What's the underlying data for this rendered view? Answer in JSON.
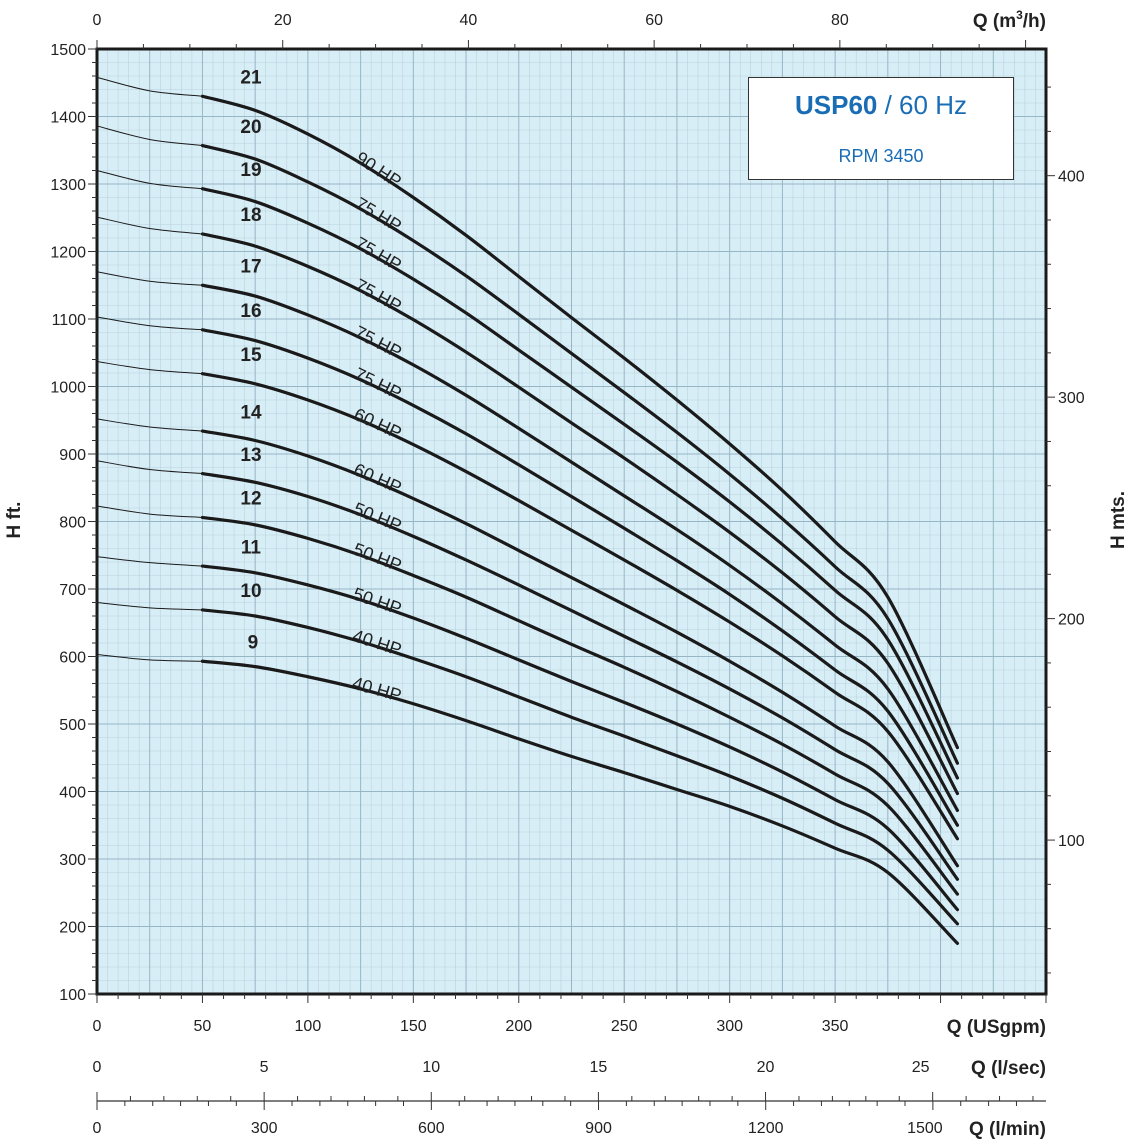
{
  "chart_data": {
    "type": "line",
    "title": "USP60",
    "title_suffix": " / 60 Hz",
    "subtitle": "RPM 3450",
    "grid": true,
    "axes": {
      "x_bottom": {
        "label": "Q (USgpm)",
        "range": [
          0,
          450
        ],
        "ticks": [
          0,
          50,
          100,
          150,
          200,
          250,
          300,
          350
        ]
      },
      "x_top": {
        "label": "Q (m³/h)",
        "label_main": "Q (m",
        "label_sup": "3",
        "label_end": "/h)",
        "range": [
          0,
          102.2
        ],
        "ticks": [
          0,
          20,
          40,
          60,
          80
        ]
      },
      "x_lsec": {
        "label": "Q (l/sec)",
        "range": [
          0,
          28.39
        ],
        "ticks": [
          0,
          5,
          10,
          15,
          20,
          25
        ]
      },
      "x_lmin": {
        "label": "Q (l/min)",
        "range": [
          0,
          1703
        ],
        "ticks": [
          0,
          300,
          600,
          900,
          1200,
          1500
        ]
      },
      "y_left": {
        "label": "H ft.",
        "range": [
          100,
          1500
        ],
        "ticks": [
          100,
          200,
          300,
          400,
          500,
          600,
          700,
          800,
          900,
          1000,
          1100,
          1200,
          1300,
          1400,
          1500
        ]
      },
      "y_right": {
        "label": "H mts.",
        "range": [
          30.5,
          457.2
        ],
        "ticks": [
          100,
          200,
          300,
          400
        ]
      }
    },
    "series": [
      {
        "name": "9",
        "power": "40 HP",
        "points": [
          [
            0,
            603
          ],
          [
            25,
            595
          ],
          [
            50,
            593
          ],
          [
            75,
            585
          ],
          [
            100,
            570
          ],
          [
            125,
            552
          ],
          [
            150,
            530
          ],
          [
            175,
            505
          ],
          [
            200,
            478
          ],
          [
            225,
            452
          ],
          [
            250,
            428
          ],
          [
            275,
            403
          ],
          [
            300,
            378
          ],
          [
            325,
            349
          ],
          [
            350,
            316
          ],
          [
            375,
            280
          ],
          [
            408,
            175
          ]
        ]
      },
      {
        "name": "10",
        "power": "40 HP",
        "points": [
          [
            0,
            680
          ],
          [
            25,
            672
          ],
          [
            50,
            669
          ],
          [
            75,
            660
          ],
          [
            100,
            643
          ],
          [
            125,
            622
          ],
          [
            150,
            597
          ],
          [
            175,
            570
          ],
          [
            200,
            540
          ],
          [
            225,
            510
          ],
          [
            250,
            482
          ],
          [
            275,
            453
          ],
          [
            300,
            423
          ],
          [
            325,
            390
          ],
          [
            350,
            353
          ],
          [
            375,
            313
          ],
          [
            408,
            204
          ]
        ]
      },
      {
        "name": "11",
        "power": "50 HP",
        "points": [
          [
            0,
            748
          ],
          [
            25,
            739
          ],
          [
            50,
            734
          ],
          [
            75,
            724
          ],
          [
            100,
            706
          ],
          [
            125,
            684
          ],
          [
            150,
            657
          ],
          [
            175,
            627
          ],
          [
            200,
            595
          ],
          [
            225,
            563
          ],
          [
            250,
            532
          ],
          [
            275,
            500
          ],
          [
            300,
            466
          ],
          [
            325,
            429
          ],
          [
            350,
            388
          ],
          [
            375,
            345
          ],
          [
            408,
            225
          ]
        ]
      },
      {
        "name": "12",
        "power": "50 HP",
        "points": [
          [
            0,
            823
          ],
          [
            25,
            811
          ],
          [
            50,
            806
          ],
          [
            75,
            795
          ],
          [
            100,
            775
          ],
          [
            125,
            750
          ],
          [
            150,
            720
          ],
          [
            175,
            688
          ],
          [
            200,
            653
          ],
          [
            225,
            618
          ],
          [
            250,
            584
          ],
          [
            275,
            548
          ],
          [
            300,
            510
          ],
          [
            325,
            470
          ],
          [
            350,
            426
          ],
          [
            375,
            379
          ],
          [
            408,
            248
          ]
        ]
      },
      {
        "name": "13",
        "power": "50 HP",
        "points": [
          [
            0,
            890
          ],
          [
            25,
            877
          ],
          [
            50,
            871
          ],
          [
            75,
            858
          ],
          [
            100,
            837
          ],
          [
            125,
            810
          ],
          [
            150,
            778
          ],
          [
            175,
            743
          ],
          [
            200,
            706
          ],
          [
            225,
            668
          ],
          [
            250,
            630
          ],
          [
            275,
            592
          ],
          [
            300,
            552
          ],
          [
            325,
            509
          ],
          [
            350,
            462
          ],
          [
            375,
            412
          ],
          [
            408,
            270
          ]
        ]
      },
      {
        "name": "14",
        "power": "60 HP",
        "points": [
          [
            0,
            952
          ],
          [
            25,
            940
          ],
          [
            50,
            934
          ],
          [
            75,
            920
          ],
          [
            100,
            897
          ],
          [
            125,
            868
          ],
          [
            150,
            834
          ],
          [
            175,
            797
          ],
          [
            200,
            757
          ],
          [
            225,
            717
          ],
          [
            250,
            677
          ],
          [
            275,
            636
          ],
          [
            300,
            593
          ],
          [
            325,
            547
          ],
          [
            350,
            497
          ],
          [
            375,
            444
          ],
          [
            408,
            290
          ]
        ]
      },
      {
        "name": "15",
        "power": "60 HP",
        "points": [
          [
            0,
            1037
          ],
          [
            25,
            1025
          ],
          [
            50,
            1019
          ],
          [
            75,
            1004
          ],
          [
            100,
            980
          ],
          [
            125,
            950
          ],
          [
            150,
            914
          ],
          [
            175,
            874
          ],
          [
            200,
            831
          ],
          [
            225,
            787
          ],
          [
            250,
            743
          ],
          [
            275,
            698
          ],
          [
            300,
            651
          ],
          [
            325,
            601
          ],
          [
            350,
            547
          ],
          [
            375,
            489
          ],
          [
            408,
            330
          ]
        ]
      },
      {
        "name": "16",
        "power": "75 HP",
        "points": [
          [
            0,
            1103
          ],
          [
            25,
            1090
          ],
          [
            50,
            1084
          ],
          [
            75,
            1068
          ],
          [
            100,
            1042
          ],
          [
            125,
            1010
          ],
          [
            150,
            972
          ],
          [
            175,
            930
          ],
          [
            200,
            884
          ],
          [
            225,
            837
          ],
          [
            250,
            790
          ],
          [
            275,
            742
          ],
          [
            300,
            692
          ],
          [
            325,
            638
          ],
          [
            350,
            580
          ],
          [
            375,
            519
          ],
          [
            408,
            350
          ]
        ]
      },
      {
        "name": "17",
        "power": "75 HP",
        "points": [
          [
            0,
            1170
          ],
          [
            25,
            1156
          ],
          [
            50,
            1150
          ],
          [
            75,
            1134
          ],
          [
            100,
            1106
          ],
          [
            125,
            1072
          ],
          [
            150,
            1032
          ],
          [
            175,
            987
          ],
          [
            200,
            938
          ],
          [
            225,
            888
          ],
          [
            250,
            838
          ],
          [
            275,
            788
          ],
          [
            300,
            735
          ],
          [
            325,
            678
          ],
          [
            350,
            617
          ],
          [
            375,
            552
          ],
          [
            408,
            372
          ]
        ]
      },
      {
        "name": "18",
        "power": "75 HP",
        "points": [
          [
            0,
            1251
          ],
          [
            25,
            1234
          ],
          [
            50,
            1226
          ],
          [
            75,
            1208
          ],
          [
            100,
            1178
          ],
          [
            125,
            1142
          ],
          [
            150,
            1099
          ],
          [
            175,
            1051
          ],
          [
            200,
            999
          ],
          [
            225,
            946
          ],
          [
            250,
            894
          ],
          [
            275,
            840
          ],
          [
            300,
            784
          ],
          [
            325,
            724
          ],
          [
            350,
            659
          ],
          [
            375,
            590
          ],
          [
            408,
            397
          ]
        ]
      },
      {
        "name": "19",
        "power": "75 HP",
        "points": [
          [
            0,
            1320
          ],
          [
            25,
            1301
          ],
          [
            50,
            1293
          ],
          [
            75,
            1274
          ],
          [
            100,
            1242
          ],
          [
            125,
            1204
          ],
          [
            150,
            1159
          ],
          [
            175,
            1109
          ],
          [
            200,
            1054
          ],
          [
            225,
            999
          ],
          [
            250,
            944
          ],
          [
            275,
            888
          ],
          [
            300,
            829
          ],
          [
            325,
            766
          ],
          [
            350,
            698
          ],
          [
            375,
            625
          ],
          [
            408,
            420
          ]
        ]
      },
      {
        "name": "20",
        "power": "75 HP",
        "points": [
          [
            0,
            1386
          ],
          [
            25,
            1366
          ],
          [
            50,
            1357
          ],
          [
            75,
            1337
          ],
          [
            100,
            1303
          ],
          [
            125,
            1263
          ],
          [
            150,
            1216
          ],
          [
            175,
            1164
          ],
          [
            200,
            1107
          ],
          [
            225,
            1049
          ],
          [
            250,
            991
          ],
          [
            275,
            932
          ],
          [
            300,
            870
          ],
          [
            325,
            804
          ],
          [
            350,
            733
          ],
          [
            375,
            656
          ],
          [
            408,
            442
          ]
        ]
      },
      {
        "name": "21",
        "power": "90 HP",
        "points": [
          [
            0,
            1458
          ],
          [
            25,
            1438
          ],
          [
            50,
            1430
          ],
          [
            75,
            1409
          ],
          [
            100,
            1374
          ],
          [
            125,
            1331
          ],
          [
            150,
            1280
          ],
          [
            175,
            1224
          ],
          [
            200,
            1163
          ],
          [
            225,
            1102
          ],
          [
            250,
            1042
          ],
          [
            275,
            980
          ],
          [
            300,
            915
          ],
          [
            325,
            846
          ],
          [
            350,
            770
          ],
          [
            375,
            688
          ],
          [
            408,
            465
          ]
        ]
      }
    ]
  }
}
